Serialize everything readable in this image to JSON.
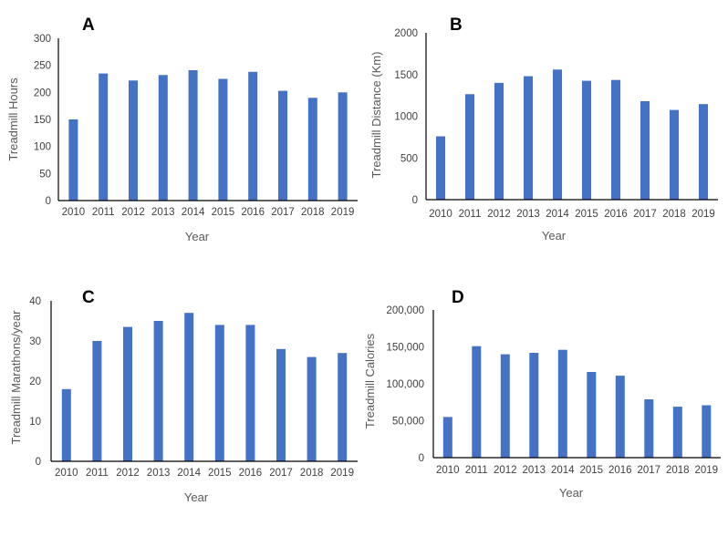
{
  "colors": {
    "bar": "#4472C4",
    "axis": "#000000",
    "text": "#404040"
  },
  "chart_data": [
    {
      "type": "bar",
      "panel_label": "A",
      "categories": [
        "2010",
        "2011",
        "2012",
        "2013",
        "2014",
        "2015",
        "2016",
        "2017",
        "2018",
        "2019"
      ],
      "values": [
        150,
        235,
        222,
        232,
        241,
        225,
        238,
        203,
        190,
        200
      ],
      "xlabel": "Year",
      "ylabel": "Treadmill Hours",
      "ylim": [
        0,
        300
      ],
      "yticks": [
        "0",
        "50",
        "100",
        "150",
        "200",
        "250",
        "300"
      ],
      "grid": false
    },
    {
      "type": "bar",
      "panel_label": "B",
      "categories": [
        "2010",
        "2011",
        "2012",
        "2013",
        "2014",
        "2015",
        "2016",
        "2017",
        "2018",
        "2019"
      ],
      "values": [
        760,
        1265,
        1400,
        1480,
        1560,
        1425,
        1435,
        1180,
        1075,
        1145
      ],
      "xlabel": "Year",
      "ylabel": "Treadmill Distance (Km)",
      "ylim": [
        0,
        2000
      ],
      "yticks": [
        "0",
        "500",
        "1000",
        "1500",
        "2000"
      ],
      "grid": false
    },
    {
      "type": "bar",
      "panel_label": "C",
      "categories": [
        "2010",
        "2011",
        "2012",
        "2013",
        "2014",
        "2015",
        "2016",
        "2017",
        "2018",
        "2019"
      ],
      "values": [
        18,
        30,
        33.5,
        35,
        37,
        34,
        34,
        28,
        26,
        27
      ],
      "xlabel": "Year",
      "ylabel": "Treadmill Marathons/year",
      "ylim": [
        0,
        40
      ],
      "yticks": [
        "0",
        "10",
        "20",
        "30",
        "40"
      ],
      "grid": false
    },
    {
      "type": "bar",
      "panel_label": "D",
      "categories": [
        "2010",
        "2011",
        "2012",
        "2013",
        "2014",
        "2015",
        "2016",
        "2017",
        "2018",
        "2019"
      ],
      "values": [
        55000,
        151000,
        140000,
        142000,
        146000,
        116000,
        111000,
        79000,
        69000,
        71000
      ],
      "xlabel": "Year",
      "ylabel": "Treadmill Calories",
      "ylim": [
        0,
        200000
      ],
      "yticks": [
        "0",
        "50,000",
        "100,000",
        "150,000",
        "200,000"
      ],
      "grid": false
    }
  ]
}
